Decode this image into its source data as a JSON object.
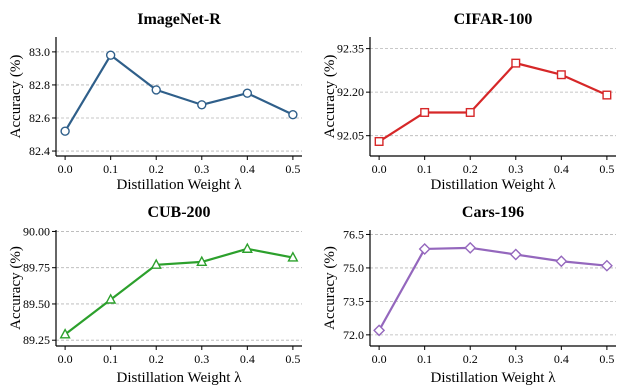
{
  "chart_data": [
    {
      "type": "line",
      "title": "ImageNet-R",
      "xlabel": "Distillation Weight λ",
      "ylabel": "Accuracy (%)",
      "x": [
        0.0,
        0.1,
        0.2,
        0.3,
        0.4,
        0.5
      ],
      "x_ticks": [
        "0.0",
        "0.1",
        "0.2",
        "0.3",
        "0.4",
        "0.5"
      ],
      "xlim": [
        -0.02,
        0.52
      ],
      "y_ticks": [
        "82.4",
        "82.6",
        "82.8",
        "83.0"
      ],
      "ylim": [
        82.37,
        83.09
      ],
      "grid": "y-dashed",
      "color": "#2f5f8a",
      "marker": "circle",
      "series": [
        {
          "values": [
            82.52,
            82.98,
            82.77,
            82.68,
            82.75,
            82.62
          ]
        }
      ]
    },
    {
      "type": "line",
      "title": "CIFAR-100",
      "xlabel": "Distillation Weight λ",
      "ylabel": "Accuracy (%)",
      "x": [
        0.0,
        0.1,
        0.2,
        0.3,
        0.4,
        0.5
      ],
      "x_ticks": [
        "0.0",
        "0.1",
        "0.2",
        "0.3",
        "0.4",
        "0.5"
      ],
      "xlim": [
        -0.02,
        0.52
      ],
      "y_ticks": [
        "92.05",
        "92.20",
        "92.35"
      ],
      "ylim": [
        91.98,
        92.39
      ],
      "grid": "y-dashed",
      "color": "#d62728",
      "marker": "square",
      "series": [
        {
          "values": [
            92.03,
            92.13,
            92.13,
            92.3,
            92.26,
            92.19
          ]
        }
      ]
    },
    {
      "type": "line",
      "title": "CUB-200",
      "xlabel": "Distillation Weight λ",
      "ylabel": "Accuracy (%)",
      "x": [
        0.0,
        0.1,
        0.2,
        0.3,
        0.4,
        0.5
      ],
      "x_ticks": [
        "0.0",
        "0.1",
        "0.2",
        "0.3",
        "0.4",
        "0.5"
      ],
      "xlim": [
        -0.02,
        0.52
      ],
      "y_ticks": [
        "89.25",
        "89.50",
        "89.75",
        "90.00"
      ],
      "ylim": [
        89.21,
        90.01
      ],
      "grid": "y-dashed",
      "color": "#2ca02c",
      "marker": "triangle",
      "series": [
        {
          "values": [
            89.29,
            89.53,
            89.77,
            89.79,
            89.88,
            89.82
          ]
        }
      ]
    },
    {
      "type": "line",
      "title": "Cars-196",
      "xlabel": "Distillation Weight λ",
      "ylabel": "Accuracy (%)",
      "x": [
        0.0,
        0.1,
        0.2,
        0.3,
        0.4,
        0.5
      ],
      "x_ticks": [
        "0.0",
        "0.1",
        "0.2",
        "0.3",
        "0.4",
        "0.5"
      ],
      "xlim": [
        -0.02,
        0.52
      ],
      "y_ticks": [
        "72.0",
        "73.5",
        "75.0",
        "76.5"
      ],
      "ylim": [
        71.5,
        76.7
      ],
      "grid": "y-dashed",
      "color": "#9467bd",
      "marker": "diamond",
      "series": [
        {
          "values": [
            72.2,
            75.85,
            75.9,
            75.6,
            75.3,
            75.1
          ]
        }
      ]
    }
  ]
}
